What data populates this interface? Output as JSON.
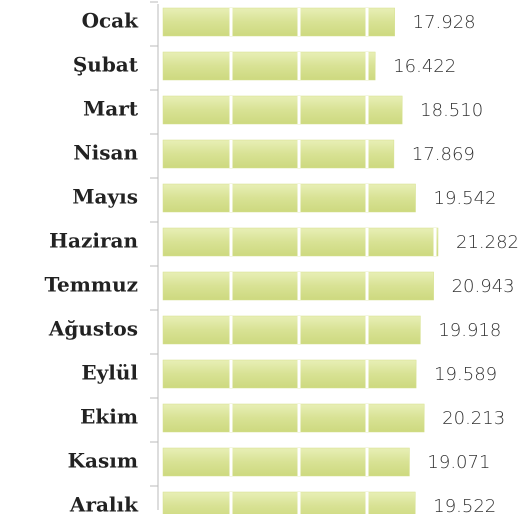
{
  "chart_data": {
    "type": "barh",
    "categories": [
      "Ocak",
      "Şubat",
      "Mart",
      "Nisan",
      "Mayıs",
      "Haziran",
      "Temmuz",
      "Ağustos",
      "Eylül",
      "Ekim",
      "Kasım",
      "Aralık"
    ],
    "values": [
      17928,
      16422,
      18510,
      17869,
      19542,
      21282,
      20943,
      19918,
      19589,
      20213,
      19071,
      19522
    ],
    "value_labels": [
      "17.928",
      "16.422",
      "18.510",
      "17.869",
      "19.542",
      "21.282",
      "20.943",
      "19.918",
      "19.589",
      "20.213",
      "19.071",
      "19.522"
    ],
    "color": "#d5e08c"
  }
}
